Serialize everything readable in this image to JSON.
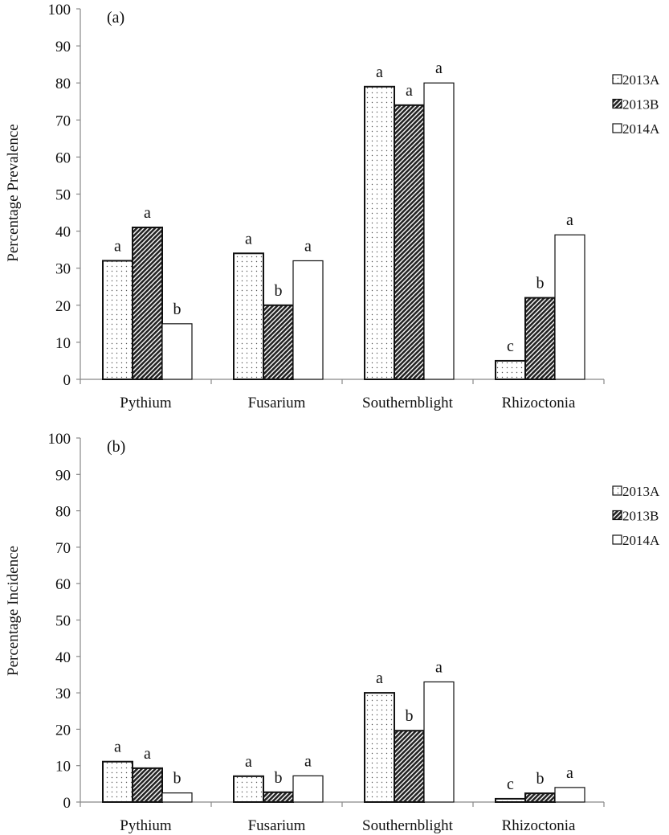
{
  "chart_data": [
    {
      "type": "bar",
      "panel_label": "(a)",
      "ylabel": "Percentage Prevalence",
      "ylim": [
        0,
        100
      ],
      "yticks": [
        0,
        10,
        20,
        30,
        40,
        50,
        60,
        70,
        80,
        90,
        100
      ],
      "categories": [
        "Pythium",
        "Fusarium",
        "Southernblight",
        "Rhizoctonia"
      ],
      "legend_position": "right",
      "series": [
        {
          "name": "2013A",
          "pattern": "dots",
          "values": [
            32,
            34,
            79,
            5
          ],
          "letters": [
            "a",
            "a",
            "a",
            "c"
          ]
        },
        {
          "name": "2013B",
          "pattern": "dark-diagonal",
          "values": [
            41,
            20,
            74,
            22
          ],
          "letters": [
            "a",
            "b",
            "a",
            "b"
          ]
        },
        {
          "name": "2014A",
          "pattern": "white",
          "values": [
            15,
            32,
            80,
            39
          ],
          "letters": [
            "b",
            "a",
            "a",
            "a"
          ]
        }
      ]
    },
    {
      "type": "bar",
      "panel_label": "(b)",
      "ylabel": "Percentage Incidence",
      "ylim": [
        0,
        100
      ],
      "yticks": [
        0,
        10,
        20,
        30,
        40,
        50,
        60,
        70,
        80,
        90,
        100
      ],
      "categories": [
        "Pythium",
        "Fusarium",
        "Southernblight",
        "Rhizoctonia"
      ],
      "legend_position": "right",
      "series": [
        {
          "name": "2013A",
          "pattern": "dots",
          "values": [
            11.1,
            7.1,
            30,
            0.9
          ],
          "letters": [
            "a",
            "a",
            "a",
            "c"
          ]
        },
        {
          "name": "2013B",
          "pattern": "dark-diagonal",
          "values": [
            9.3,
            2.7,
            19.6,
            2.4
          ],
          "letters": [
            "a",
            "b",
            "b",
            "b"
          ]
        },
        {
          "name": "2014A",
          "pattern": "white",
          "values": [
            2.5,
            7.2,
            33,
            4.0
          ],
          "letters": [
            "b",
            "a",
            "a",
            "a"
          ]
        }
      ]
    }
  ]
}
